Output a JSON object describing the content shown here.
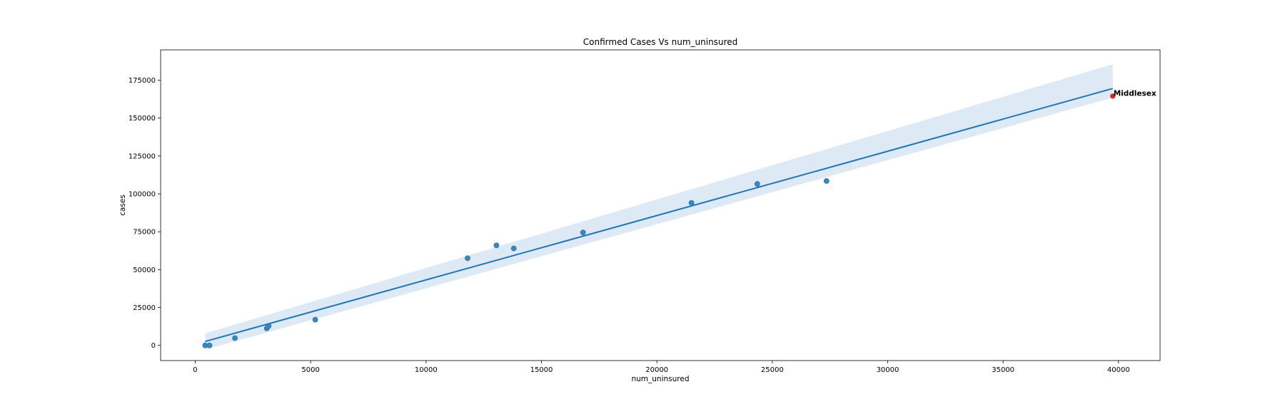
{
  "chart_data": {
    "type": "scatter",
    "title": "Confirmed Cases Vs num_uninsured",
    "xlabel": "num_uninsured",
    "ylabel": "cases",
    "xlim": [
      -1500,
      41800
    ],
    "ylim": [
      -10000,
      195000
    ],
    "xticks": [
      0,
      5000,
      10000,
      15000,
      20000,
      25000,
      30000,
      35000,
      40000
    ],
    "yticks": [
      0,
      25000,
      50000,
      75000,
      100000,
      125000,
      150000,
      175000
    ],
    "grid": false,
    "series": [
      {
        "x": [
          430,
          620,
          1720,
          3100,
          3180,
          5200,
          11800,
          13050,
          13800,
          16800,
          21500,
          24350,
          27350
        ],
        "y": [
          0,
          0,
          4800,
          11200,
          12800,
          17000,
          57500,
          66000,
          64000,
          74500,
          94000,
          106500,
          108500
        ]
      }
    ],
    "regression": {
      "x": [
        430,
        39750
      ],
      "y": [
        2600,
        169500
      ],
      "ci_upper": [
        7900,
        185500
      ],
      "ci_lower": [
        -2800,
        163500
      ]
    },
    "highlight": {
      "label": "Middlesex",
      "x": 39750,
      "y": 164500
    },
    "colors": {
      "points": "#3a86c0",
      "line": "#1f77b4",
      "band": "#dde9f4",
      "highlight": "#d62728"
    }
  }
}
